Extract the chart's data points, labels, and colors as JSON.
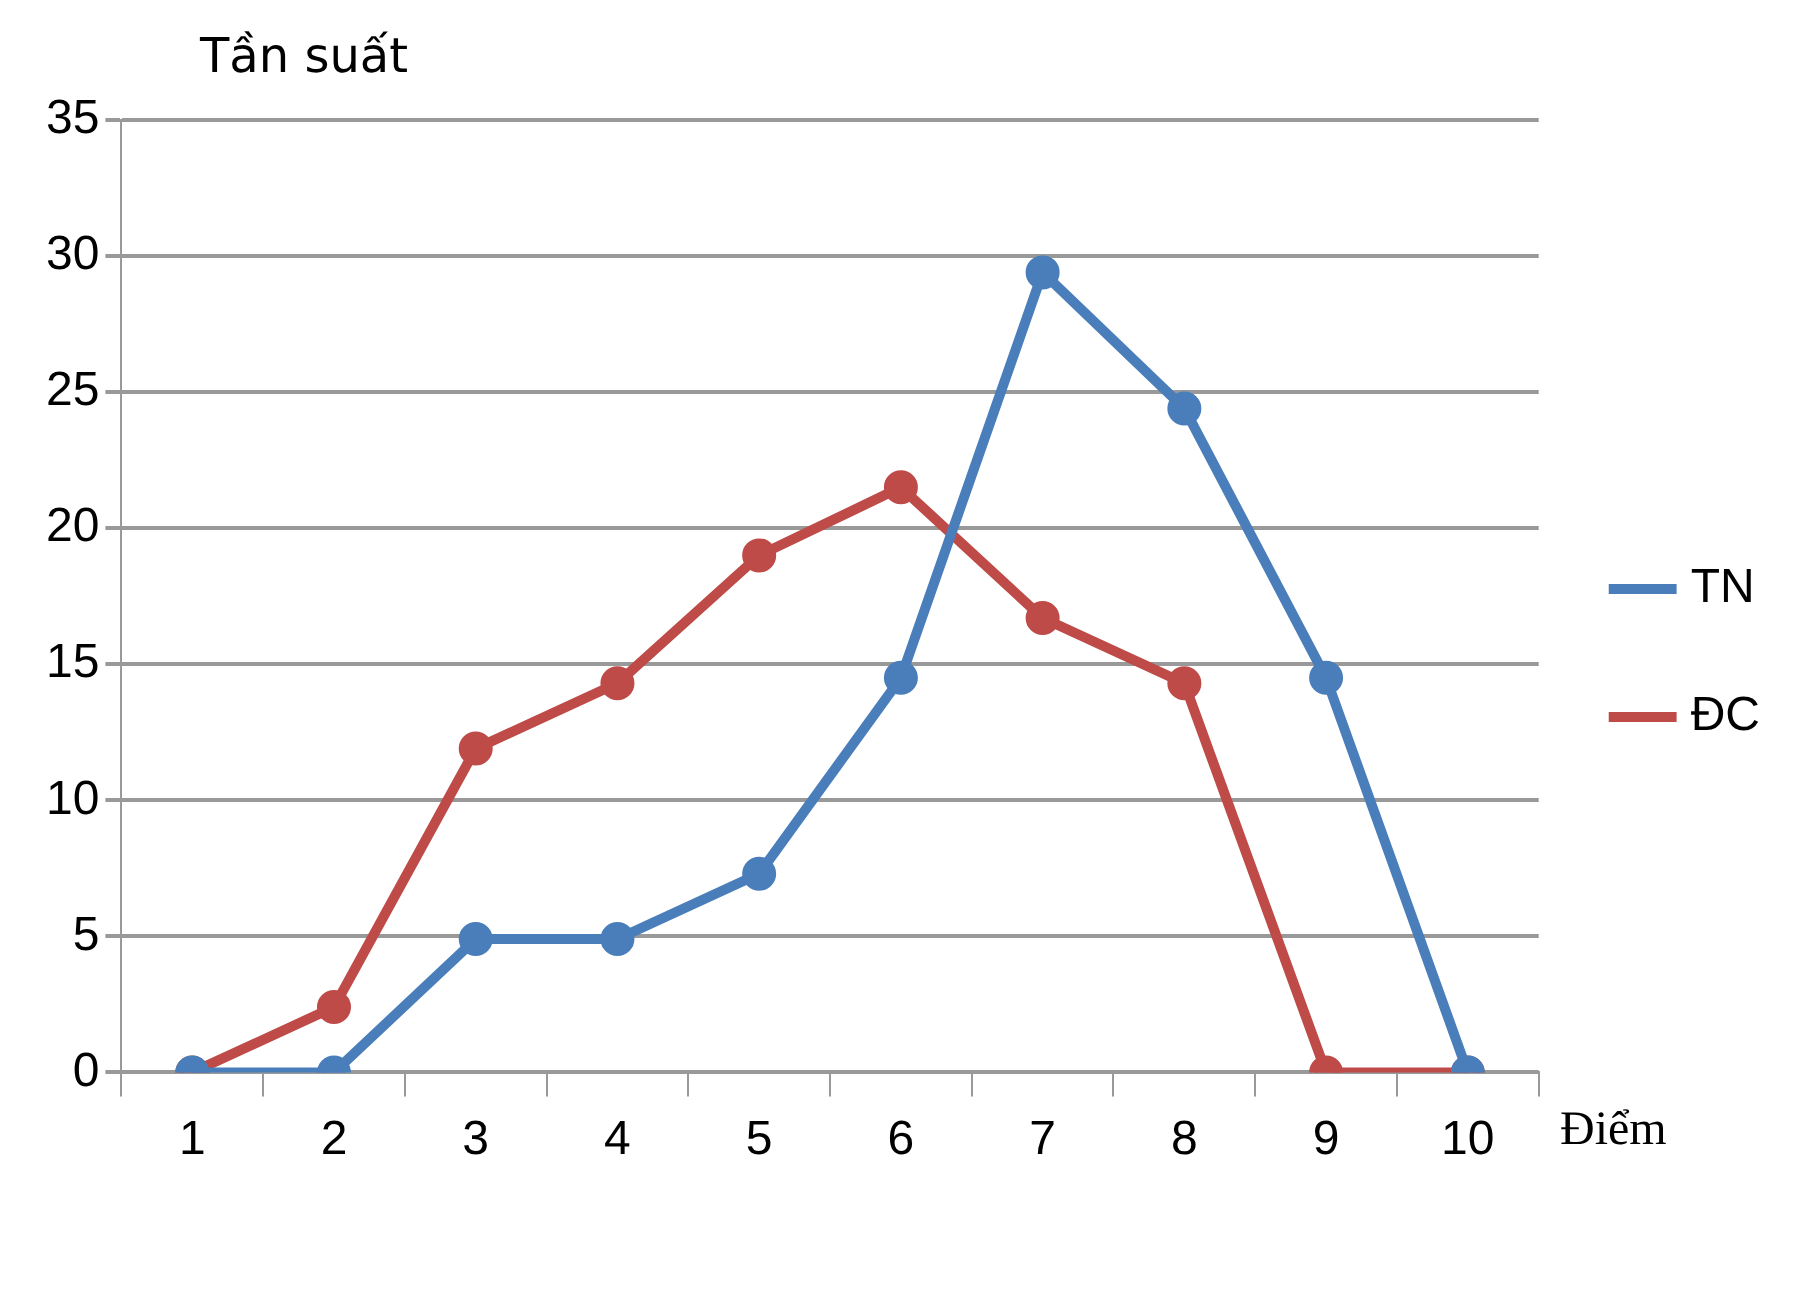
{
  "chart_data": {
    "type": "line",
    "xlabel": "Điểm",
    "ylabel": "Tần suất",
    "categories": [
      "1",
      "2",
      "3",
      "4",
      "5",
      "6",
      "7",
      "8",
      "9",
      "10"
    ],
    "series": [
      {
        "name": "TN",
        "color": "#4a7ebb",
        "values": [
          0,
          0,
          4.9,
          4.9,
          7.3,
          14.5,
          29.4,
          24.4,
          14.5,
          0
        ]
      },
      {
        "name": "ĐC",
        "color": "#be4b48",
        "values": [
          0,
          2.4,
          11.9,
          14.3,
          19,
          21.5,
          16.7,
          14.3,
          0,
          0
        ]
      }
    ],
    "ylim": [
      0,
      35
    ],
    "yticks": [
      0,
      5,
      10,
      15,
      20,
      25,
      30,
      35
    ],
    "grid": "y",
    "legend": "right",
    "marker": "circle",
    "line_style": "solid"
  }
}
